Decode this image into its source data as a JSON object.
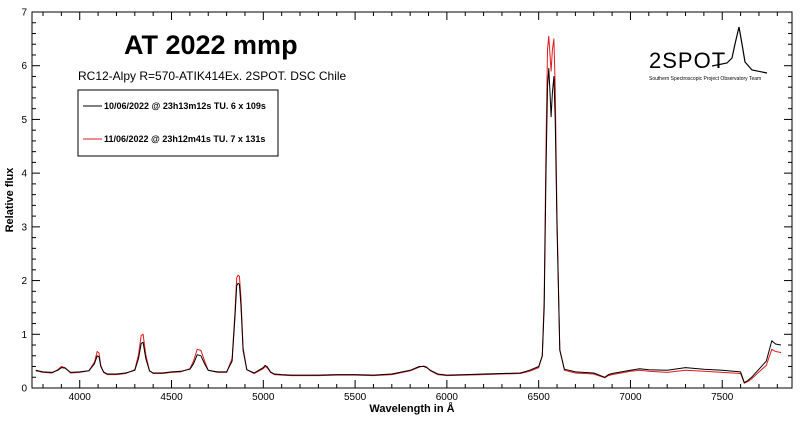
{
  "chart_data": {
    "type": "line",
    "title": "AT 2022 mmp",
    "subtitle": "RC12-Alpy R=570-ATIK414Ex. 2SPOT. DSC Chile",
    "xlabel": "Wavelength in Å",
    "ylabel": "Relative flux",
    "xlim": [
      3740,
      7880
    ],
    "ylim": [
      0,
      7
    ],
    "xticks": [
      4000,
      4500,
      5000,
      5500,
      6000,
      6500,
      7000,
      7500
    ],
    "yticks": [
      0,
      1,
      2,
      3,
      4,
      5,
      6,
      7
    ],
    "grid": false,
    "legend_position": "top-left",
    "series": [
      {
        "name": "10/06/2022 @ 23h13m12s TU.  6 x 109s",
        "color": "#000000",
        "x": [
          3760,
          3800,
          3850,
          3880,
          3900,
          3920,
          3950,
          4000,
          4050,
          4080,
          4095,
          4105,
          4115,
          4130,
          4150,
          4200,
          4250,
          4300,
          4320,
          4335,
          4345,
          4360,
          4380,
          4400,
          4450,
          4500,
          4550,
          4600,
          4620,
          4640,
          4660,
          4680,
          4700,
          4750,
          4800,
          4830,
          4845,
          4855,
          4862,
          4870,
          4878,
          4890,
          4910,
          4950,
          5000,
          5010,
          5020,
          5040,
          5060,
          5100,
          5150,
          5200,
          5300,
          5400,
          5500,
          5600,
          5700,
          5800,
          5850,
          5875,
          5890,
          5910,
          5950,
          6000,
          6100,
          6200,
          6300,
          6400,
          6450,
          6500,
          6520,
          6530,
          6540,
          6548,
          6555,
          6562,
          6568,
          6575,
          6583,
          6590,
          6600,
          6615,
          6640,
          6700,
          6800,
          6860,
          6880,
          6900,
          7000,
          7050,
          7100,
          7200,
          7300,
          7400,
          7500,
          7600,
          7620,
          7640,
          7660,
          7700,
          7740,
          7770,
          7790,
          7820
        ],
        "y": [
          0.33,
          0.3,
          0.29,
          0.33,
          0.38,
          0.37,
          0.29,
          0.3,
          0.32,
          0.45,
          0.6,
          0.58,
          0.4,
          0.3,
          0.26,
          0.26,
          0.28,
          0.33,
          0.55,
          0.83,
          0.85,
          0.55,
          0.32,
          0.28,
          0.28,
          0.3,
          0.31,
          0.35,
          0.45,
          0.62,
          0.6,
          0.45,
          0.33,
          0.3,
          0.3,
          0.5,
          1.3,
          1.9,
          1.95,
          1.93,
          1.55,
          0.7,
          0.34,
          0.28,
          0.38,
          0.42,
          0.4,
          0.3,
          0.26,
          0.25,
          0.24,
          0.24,
          0.24,
          0.25,
          0.25,
          0.24,
          0.26,
          0.33,
          0.4,
          0.4,
          0.38,
          0.33,
          0.26,
          0.24,
          0.25,
          0.26,
          0.27,
          0.28,
          0.33,
          0.4,
          0.6,
          1.5,
          4.0,
          5.6,
          5.95,
          5.5,
          5.05,
          5.5,
          5.8,
          5.0,
          3.0,
          0.7,
          0.35,
          0.3,
          0.28,
          0.2,
          0.25,
          0.27,
          0.33,
          0.36,
          0.34,
          0.33,
          0.38,
          0.35,
          0.33,
          0.3,
          0.1,
          0.14,
          0.2,
          0.35,
          0.5,
          0.88,
          0.82,
          0.8
        ]
      },
      {
        "name": "11/06/2022 @ 23h12m41s TU.  7 x 131s",
        "color": "#e31a1c",
        "x": [
          3760,
          3800,
          3850,
          3880,
          3900,
          3920,
          3950,
          4000,
          4050,
          4080,
          4095,
          4105,
          4115,
          4130,
          4150,
          4200,
          4250,
          4300,
          4320,
          4335,
          4345,
          4360,
          4380,
          4400,
          4450,
          4500,
          4550,
          4600,
          4620,
          4640,
          4660,
          4680,
          4700,
          4750,
          4800,
          4830,
          4845,
          4855,
          4862,
          4870,
          4878,
          4890,
          4910,
          4950,
          5000,
          5010,
          5020,
          5040,
          5060,
          5100,
          5150,
          5200,
          5300,
          5400,
          5500,
          5600,
          5700,
          5800,
          5850,
          5875,
          5890,
          5910,
          5950,
          6000,
          6100,
          6200,
          6300,
          6400,
          6450,
          6500,
          6520,
          6530,
          6540,
          6548,
          6555,
          6562,
          6568,
          6575,
          6583,
          6590,
          6600,
          6615,
          6640,
          6700,
          6800,
          6860,
          6880,
          6900,
          7000,
          7050,
          7100,
          7200,
          7300,
          7400,
          7500,
          7600,
          7620,
          7640,
          7660,
          7700,
          7740,
          7770,
          7790,
          7820
        ],
        "y": [
          0.32,
          0.29,
          0.28,
          0.34,
          0.4,
          0.38,
          0.28,
          0.29,
          0.32,
          0.48,
          0.68,
          0.65,
          0.42,
          0.29,
          0.25,
          0.25,
          0.27,
          0.34,
          0.62,
          0.98,
          1.0,
          0.62,
          0.32,
          0.27,
          0.27,
          0.29,
          0.3,
          0.36,
          0.5,
          0.72,
          0.7,
          0.5,
          0.33,
          0.29,
          0.29,
          0.55,
          1.4,
          2.05,
          2.1,
          2.08,
          1.7,
          0.75,
          0.34,
          0.27,
          0.36,
          0.4,
          0.38,
          0.29,
          0.25,
          0.24,
          0.23,
          0.23,
          0.23,
          0.24,
          0.24,
          0.23,
          0.25,
          0.32,
          0.39,
          0.41,
          0.39,
          0.32,
          0.25,
          0.23,
          0.24,
          0.25,
          0.26,
          0.27,
          0.31,
          0.38,
          0.6,
          1.7,
          4.5,
          6.3,
          6.55,
          6.2,
          5.9,
          6.3,
          6.5,
          5.6,
          3.2,
          0.72,
          0.33,
          0.28,
          0.26,
          0.19,
          0.23,
          0.25,
          0.31,
          0.33,
          0.31,
          0.29,
          0.33,
          0.31,
          0.29,
          0.27,
          0.09,
          0.12,
          0.17,
          0.3,
          0.42,
          0.72,
          0.68,
          0.66
        ]
      }
    ]
  },
  "logo": {
    "brand": "2SPOT",
    "tagline": "Southern Spectroscopic Project Observatory Team"
  }
}
